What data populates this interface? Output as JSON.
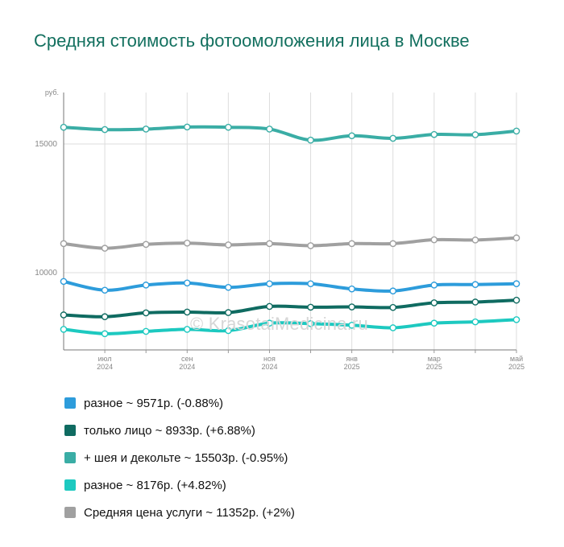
{
  "title": "Средняя стоимость фотоомоложения лица в Москве",
  "watermark": "© KrasotaiMedicina.ru",
  "chart_data": {
    "type": "line",
    "y_unit": "руб.",
    "ylim": [
      7000,
      17000
    ],
    "y_ticks": [
      10000,
      15000
    ],
    "x": [
      "2024-06",
      "2024-07",
      "2024-08",
      "2024-09",
      "2024-10",
      "2024-11",
      "2024-12",
      "2025-01",
      "2025-02",
      "2025-03",
      "2025-04",
      "2025-05"
    ],
    "x_tick_labels": [
      {
        "month": "июл",
        "year": "2024",
        "index": 1
      },
      {
        "month": "сен",
        "year": "2024",
        "index": 3
      },
      {
        "month": "ноя",
        "year": "2024",
        "index": 5
      },
      {
        "month": "янв",
        "year": "2025",
        "index": 7
      },
      {
        "month": "мар",
        "year": "2025",
        "index": 9
      },
      {
        "month": "май",
        "year": "2025",
        "index": 11
      }
    ],
    "grid": true,
    "series": [
      {
        "key": "s1",
        "name": "+ шея и декольте",
        "color": "#3aada5",
        "values": [
          15650,
          15560,
          15580,
          15660,
          15650,
          15580,
          15150,
          15320,
          15220,
          15370,
          15360,
          15503
        ]
      },
      {
        "key": "s2",
        "name": "Средняя цена услуги",
        "color": "#a0a0a0",
        "values": [
          11130,
          10950,
          11100,
          11150,
          11080,
          11130,
          11050,
          11130,
          11130,
          11280,
          11270,
          11352
        ]
      },
      {
        "key": "s3",
        "name": "разное",
        "color": "#2d9cdb",
        "values": [
          9660,
          9320,
          9520,
          9600,
          9430,
          9570,
          9570,
          9370,
          9290,
          9520,
          9540,
          9571
        ]
      },
      {
        "key": "s4",
        "name": "только лицо",
        "color": "#0f6b61",
        "values": [
          8360,
          8290,
          8440,
          8470,
          8450,
          8690,
          8660,
          8670,
          8650,
          8830,
          8860,
          8933
        ]
      },
      {
        "key": "s5",
        "name": "разное",
        "color": "#1dc9c0",
        "values": [
          7800,
          7630,
          7720,
          7800,
          7750,
          8040,
          8020,
          7960,
          7860,
          8040,
          8090,
          8176
        ]
      }
    ]
  },
  "legend": [
    {
      "label": "разное ~ 9571р. (-0.88%)",
      "color": "#2d9cdb"
    },
    {
      "label": "только лицо ~ 8933р. (+6.88%)",
      "color": "#0f6b61"
    },
    {
      "label": "+ шея и декольте ~ 15503р. (-0.95%)",
      "color": "#3aada5"
    },
    {
      "label": "разное ~ 8176р. (+4.82%)",
      "color": "#1dc9c0"
    },
    {
      "label": "Средняя цена услуги ~ 11352р. (+2%)",
      "color": "#a0a0a0"
    }
  ]
}
